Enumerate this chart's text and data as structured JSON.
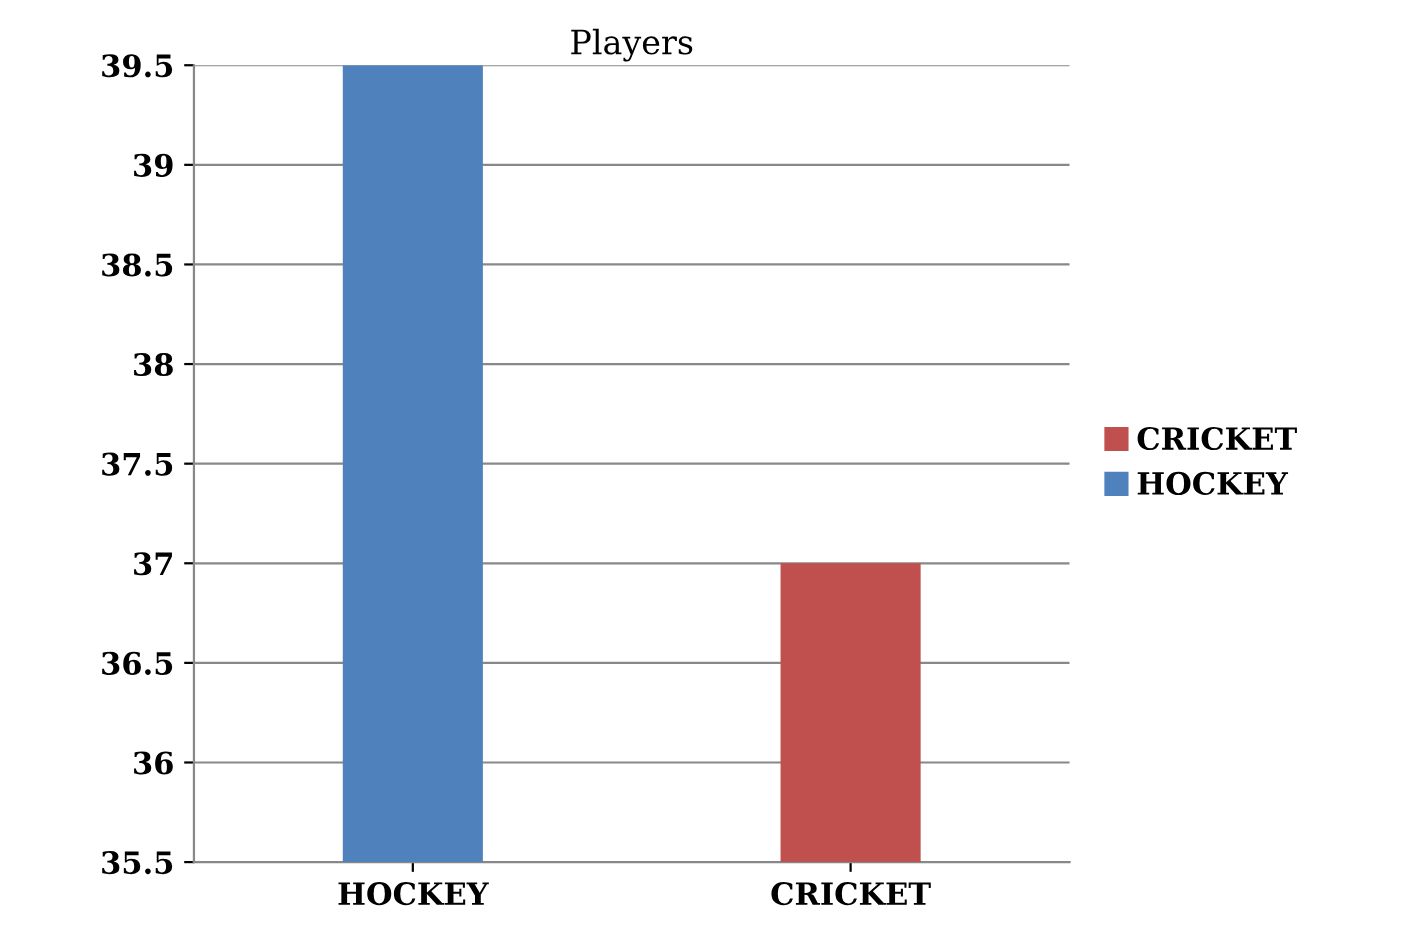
{
  "chart_data": {
    "type": "bar",
    "title": "Players",
    "categories": [
      "HOCKEY",
      "CRICKET"
    ],
    "series": [
      {
        "name": "HOCKEY",
        "color": "#4f81bd",
        "values": [
          39.5,
          null
        ]
      },
      {
        "name": "CRICKET",
        "color": "#c0504d",
        "values": [
          null,
          37
        ]
      }
    ],
    "ylim": [
      35.5,
      39.5
    ],
    "yticks": [
      35.5,
      36,
      36.5,
      37,
      37.5,
      38,
      38.5,
      39,
      39.5
    ],
    "grid": "y",
    "legend": "right"
  }
}
